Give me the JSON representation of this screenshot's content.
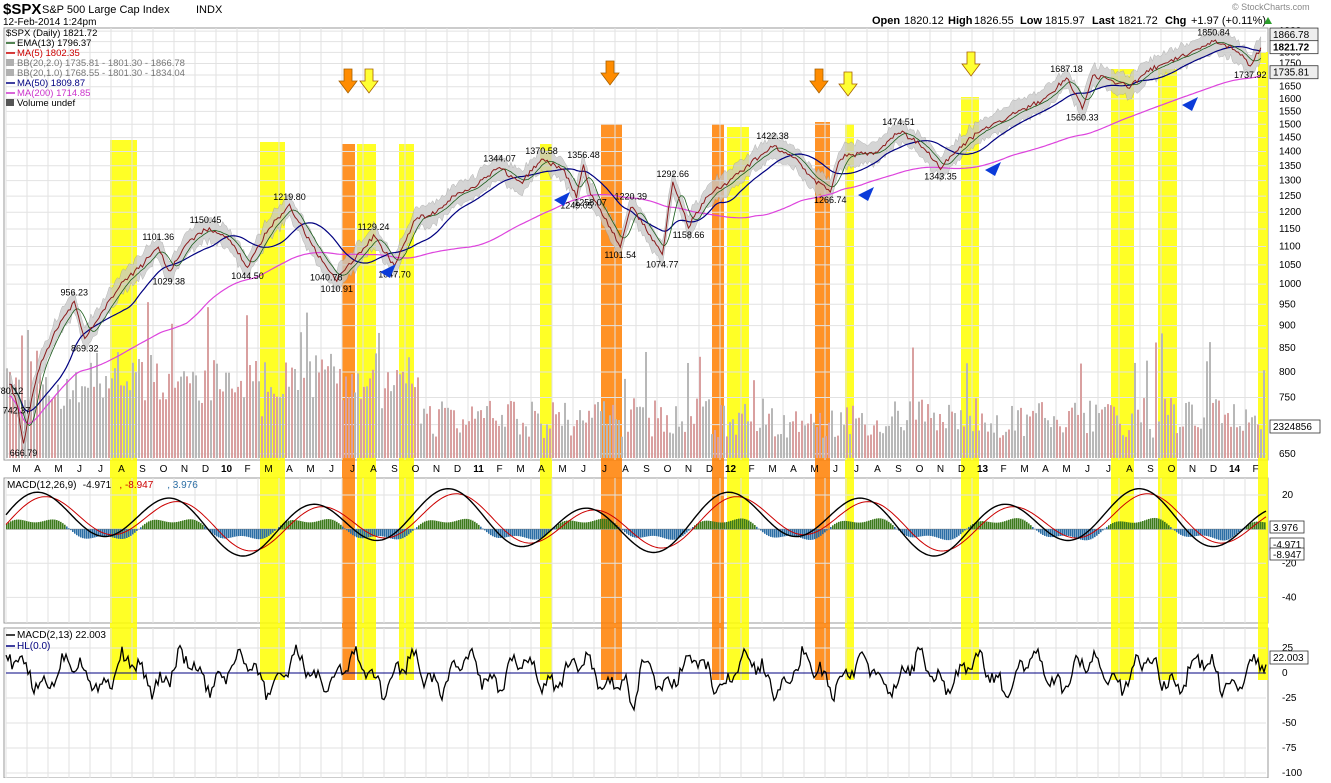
{
  "header": {
    "symbol": "$SPX",
    "name": "S&P 500 Large Cap Index",
    "exchange": "INDX",
    "date": "12-Feb-2014 1:24pm",
    "watermark": "© StockCharts.com",
    "open_label": "Open",
    "open": "1820.12",
    "high_label": "High",
    "high": "1826.55",
    "low_label": "Low",
    "low": "1815.97",
    "last_label": "Last",
    "last": "1821.72",
    "chg_label": "Chg",
    "chg": "+1.97 (+0.11%)"
  },
  "legend_main": [
    {
      "text": "$SPX (Daily) 1821.72",
      "color": "#000000",
      "swatch": "none"
    },
    {
      "text": "EMA(13) 1796.37",
      "color": "#000000",
      "swatch": "line",
      "swatch_color": "#1a5c1a"
    },
    {
      "text": "MA(5) 1802.35",
      "color": "#cc0000",
      "swatch": "line",
      "swatch_color": "#cc0000"
    },
    {
      "text": "BB(20,2.0) 1735.81 - 1801.30 - 1866.78",
      "color": "#777777",
      "swatch": "box",
      "swatch_color": "#b0b0b0"
    },
    {
      "text": "BB(20,1.0) 1768.55 - 1801.30 - 1834.04",
      "color": "#777777",
      "swatch": "box",
      "swatch_color": "#b0b0b0"
    },
    {
      "text": "MA(50) 1809.87",
      "color": "#000080",
      "swatch": "line",
      "swatch_color": "#000080"
    },
    {
      "text": "MA(200) 1714.85",
      "color": "#cc33cc",
      "swatch": "line",
      "swatch_color": "#cc33cc"
    },
    {
      "text": "Volume undef",
      "color": "#000000",
      "swatch": "bars",
      "swatch_color": "#555555"
    }
  ],
  "legend_macd": [
    {
      "text": "MACD(12,26,9)",
      "color": "#000000"
    },
    {
      "text": "-4.971",
      "color": "#000000"
    },
    {
      "text": ", -8.947",
      "color": "#cc0000"
    },
    {
      "text": ", 3.976",
      "color": "#2b6ea5"
    }
  ],
  "legend_macd2": [
    {
      "text": "MACD(2,13) 22.003",
      "color": "#000000",
      "swatch_color": "#000000"
    },
    {
      "text": "HL(0.0)",
      "color": "#000080",
      "swatch_color": "#000080"
    }
  ],
  "colors": {
    "yellow_band": "#ffff00",
    "orange_band": "#ff7f00",
    "price_line": "#8b1a1a",
    "bb_fill": "#c8c8c8",
    "ma50": "#000080",
    "ma200": "#dd44dd",
    "ema13": "#1a5c1a",
    "macd_line": "#000000",
    "signal_line": "#cc0000",
    "histogram": "#2b6ea5",
    "histogram_green": "#3c7a1c",
    "arrow_blue": "#0b3bd9",
    "arrow_orange": "#ff8c00",
    "arrow_yellow": "#ffff33",
    "last_badge": "#000000"
  },
  "chart_data": {
    "type": "line",
    "title": "$SPX S&P 500 Large Cap Index INDX",
    "x_axis_ticks": [
      "M",
      "A",
      "M",
      "J",
      "J",
      "A",
      "S",
      "O",
      "N",
      "D",
      "10",
      "F",
      "M",
      "A",
      "M",
      "J",
      "J",
      "A",
      "S",
      "O",
      "N",
      "D",
      "11",
      "F",
      "M",
      "A",
      "M",
      "J",
      "J",
      "A",
      "S",
      "O",
      "N",
      "D",
      "12",
      "F",
      "M",
      "A",
      "M",
      "J",
      "J",
      "A",
      "S",
      "O",
      "N",
      "D",
      "13",
      "F",
      "M",
      "A",
      "M",
      "J",
      "J",
      "A",
      "S",
      "O",
      "N",
      "D",
      "14",
      "F"
    ],
    "price_axis_ticks": [
      650,
      700,
      750,
      800,
      850,
      900,
      950,
      1000,
      1050,
      1100,
      1150,
      1200,
      1250,
      1300,
      1350,
      1400,
      1450,
      1500,
      1550,
      1600,
      1650,
      1700,
      1750,
      1800,
      1850,
      1900
    ],
    "price_axis_scale": "log",
    "price_series": {
      "name": "$SPX (Daily)",
      "points": [
        [
          "M",
          780.12
        ],
        [
          "M",
          742.37
        ],
        [
          "M",
          666.79
        ],
        [
          "A",
          800
        ],
        [
          "M",
          900
        ],
        [
          "J",
          956.23
        ],
        [
          "J",
          869.32
        ],
        [
          "A",
          1000
        ],
        [
          "S",
          1050
        ],
        [
          "O",
          1101.36
        ],
        [
          "O",
          1029.38
        ],
        [
          "N",
          1100
        ],
        [
          "D",
          1150.45
        ],
        [
          "10",
          1130
        ],
        [
          "F",
          1044.5
        ],
        [
          "M",
          1150
        ],
        [
          "A",
          1219.8
        ],
        [
          "M",
          1110
        ],
        [
          "J",
          1040.78
        ],
        [
          "J",
          1010.91
        ],
        [
          "A",
          1129.24
        ],
        [
          "S",
          1047.7
        ],
        [
          "O",
          1180
        ],
        [
          "N",
          1200
        ],
        [
          "D",
          1260
        ],
        [
          "11",
          1290
        ],
        [
          "F",
          1344.07
        ],
        [
          "M",
          1290
        ],
        [
          "A",
          1370.58
        ],
        [
          "M",
          1340
        ],
        [
          "J",
          1249.05
        ],
        [
          "J",
          1356.48
        ],
        [
          "J",
          1258.07
        ],
        [
          "A",
          1101.54
        ],
        [
          "A",
          1220.39
        ],
        [
          "S",
          1150
        ],
        [
          "O",
          1074.77
        ],
        [
          "O",
          1292.66
        ],
        [
          "N",
          1158.66
        ],
        [
          "D",
          1260
        ],
        [
          "12",
          1300
        ],
        [
          "F",
          1360
        ],
        [
          "M",
          1422.38
        ],
        [
          "A",
          1380
        ],
        [
          "M",
          1300
        ],
        [
          "J",
          1266.74
        ],
        [
          "J",
          1380
        ],
        [
          "A",
          1400
        ],
        [
          "S",
          1474.51
        ],
        [
          "O",
          1430
        ],
        [
          "N",
          1343.35
        ],
        [
          "D",
          1420
        ],
        [
          "13",
          1480
        ],
        [
          "F",
          1520
        ],
        [
          "M",
          1560
        ],
        [
          "A",
          1600
        ],
        [
          "M",
          1687.18
        ],
        [
          "J",
          1560.33
        ],
        [
          "J",
          1700
        ],
        [
          "A",
          1650
        ],
        [
          "S",
          1725
        ],
        [
          "O",
          1760
        ],
        [
          "N",
          1800
        ],
        [
          "D",
          1850.84
        ],
        [
          "14",
          1820
        ],
        [
          "F",
          1737.92
        ],
        [
          "F",
          1821.72
        ]
      ]
    },
    "price_annotations": [
      "956.23",
      "869.32",
      "780.12",
      "742.37",
      "666.79",
      "1101.36",
      "1029.38",
      "1150.45",
      "1044.50",
      "1219.80",
      "1040.78",
      "1010.91",
      "1129.24",
      "1047.70",
      "1344.07",
      "1370.58",
      "1356.48",
      "1249.05",
      "1258.07",
      "1220.39",
      "1292.66",
      "1101.54",
      "1074.77",
      "1158.66",
      "1422.38",
      "1266.74",
      "1474.51",
      "1343.35",
      "1687.18",
      "1560.33",
      "1850.84",
      "1737.92"
    ],
    "right_axis_badges": [
      "1866.78",
      "1821.72",
      "1735.81"
    ],
    "volume_badge": "2324856",
    "macd_axis_ticks": [
      20,
      0,
      -20,
      -40
    ],
    "macd_badges": [
      "3.976",
      "-4.971",
      "-8.947"
    ],
    "macd2_axis_ticks": [
      25,
      0,
      -25,
      -50,
      -75,
      -100
    ],
    "macd2_badge": "22.003",
    "highlight_bands": [
      {
        "color": "yellow",
        "month": "A"
      },
      {
        "color": "yellow",
        "month": "M"
      },
      {
        "color": "orange",
        "month": "J"
      },
      {
        "color": "yellow",
        "month": "J"
      },
      {
        "color": "yellow",
        "month": "S"
      },
      {
        "color": "yellow",
        "month": "A"
      },
      {
        "color": "orange",
        "month": "J"
      },
      {
        "color": "orange",
        "month": "D"
      },
      {
        "color": "yellow",
        "month": "12"
      },
      {
        "color": "orange",
        "month": "M"
      },
      {
        "color": "yellow",
        "month": "J"
      },
      {
        "color": "yellow",
        "month": "D"
      },
      {
        "color": "yellow",
        "month": "J"
      },
      {
        "color": "yellow",
        "month": "S"
      },
      {
        "color": "yellow",
        "month": "F"
      }
    ],
    "arrows": [
      {
        "color": "orange",
        "direction": "down",
        "month": "J"
      },
      {
        "color": "yellow",
        "direction": "down",
        "month": "J"
      },
      {
        "color": "blue",
        "direction": "up",
        "month": "S"
      },
      {
        "color": "blue",
        "direction": "up",
        "month": "A"
      },
      {
        "color": "orange",
        "direction": "down",
        "month": "J"
      },
      {
        "color": "orange",
        "direction": "down",
        "month": "M"
      },
      {
        "color": "yellow",
        "direction": "down",
        "month": "J"
      },
      {
        "color": "blue",
        "direction": "up",
        "month": "J"
      },
      {
        "color": "yellow",
        "direction": "down",
        "month": "D"
      },
      {
        "color": "blue",
        "direction": "up",
        "month": "D"
      },
      {
        "color": "blue",
        "direction": "up",
        "month": "O"
      }
    ],
    "grid": true,
    "legend_position": "top-left"
  }
}
